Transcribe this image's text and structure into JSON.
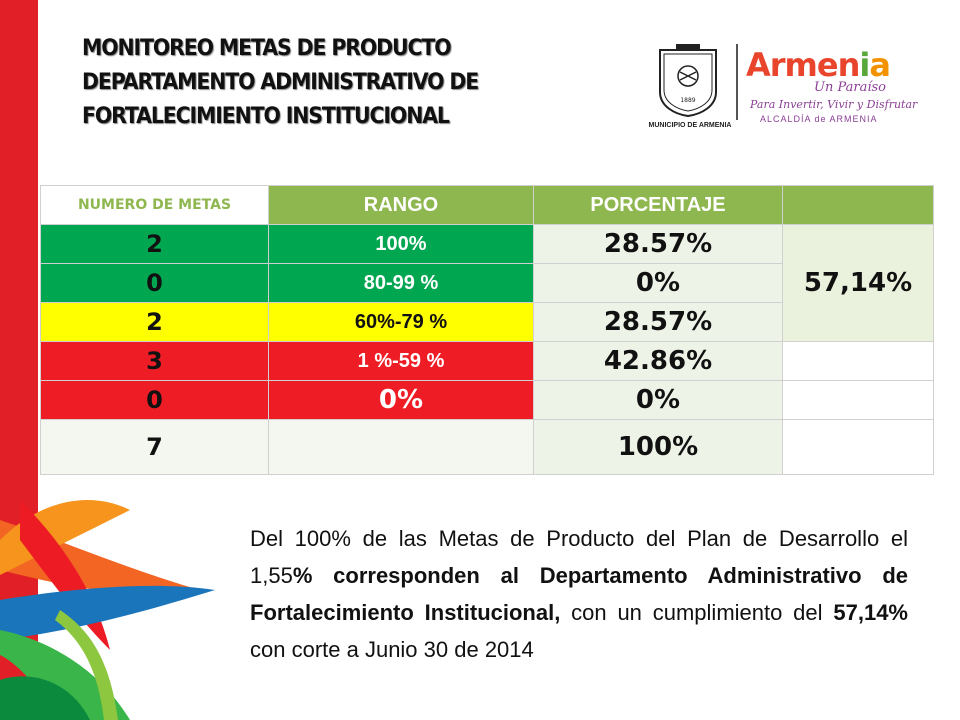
{
  "title": {
    "line1": "MONITOREO METAS DE PRODUCTO",
    "line2": "DEPARTAMENTO ADMINISTRATIVO  DE",
    "line3": "FORTALECIMIENTO INSTITUCIONAL"
  },
  "logos": {
    "seal_caption": "MUNICIPIO DE ARMENIA",
    "brand_a": "Armen",
    "brand_b": "i",
    "brand_c": "a",
    "tagline1": "Un Paraíso",
    "tagline2": "Para Invertir, Vivir y Disfrutar",
    "tagline3": "ALCALDÍA  de  ARMENIA"
  },
  "table": {
    "headers": [
      "NUMERO DE METAS",
      "RANGO",
      "PORCENTAJE"
    ],
    "rows": [
      {
        "numero": "2",
        "rango": "100%",
        "porcentaje": "28.57%"
      },
      {
        "numero": "0",
        "rango": "80-99  %",
        "porcentaje": "0%"
      },
      {
        "numero": "2",
        "rango": "60%-79 %",
        "porcentaje": "28.57%"
      },
      {
        "numero": "3",
        "rango": "1  %-59 %",
        "porcentaje": "42.86%"
      },
      {
        "numero": "0",
        "rango": "0%",
        "porcentaje": "0%"
      },
      {
        "numero": "7",
        "rango": "",
        "porcentaje": "100%"
      }
    ],
    "merged_value": "57,14%",
    "colors": {
      "green": "#00a650",
      "yellow": "#ffff00",
      "red": "#ee1c25",
      "header": "#8fb750"
    }
  },
  "paragraph": {
    "t1": "Del 100% de las Metas de Producto del Plan de Desarrollo el 1,55",
    "t2": "% corresponden al Departamento Administrativo de Fortalecimiento Institucional,",
    "t3": " con un cumplimiento del  ",
    "t4": "57,14%",
    "t5": " con corte a Junio 30 de 2014"
  }
}
